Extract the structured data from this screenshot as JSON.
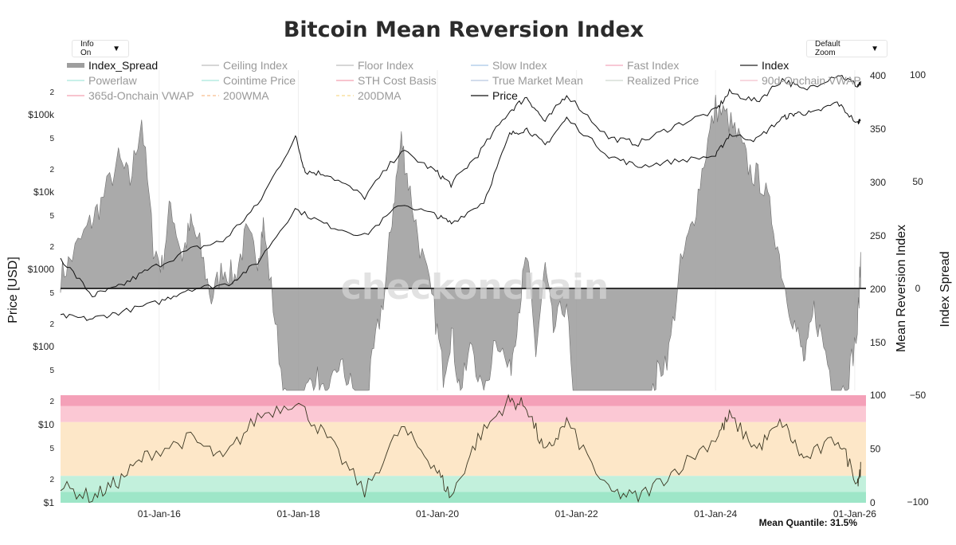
{
  "title": "Bitcoin Mean Reversion Index",
  "controls": {
    "info_label": "Info On",
    "zoom_label": "Default Zoom"
  },
  "watermark": "checkonchain",
  "footer": "Mean Quantile: 31.5%",
  "axes": {
    "left_title": "Price [USD]",
    "right_title": "Mean Reversion Index",
    "far_right_title": "Index Spread",
    "price_ticks": [
      "2",
      "$100k",
      "5",
      "2",
      "$10k",
      "5",
      "2",
      "$1000",
      "5",
      "2",
      "$100",
      "5"
    ],
    "quantile_price_ticks": [
      "2",
      "$10",
      "5",
      "2",
      "$1"
    ],
    "index_ticks": [
      "400",
      "350",
      "300",
      "250",
      "200",
      "150"
    ],
    "quantile_ticks": [
      "100",
      "50",
      "0"
    ],
    "spread_ticks": [
      "100",
      "50",
      "0",
      "−50",
      "−100"
    ],
    "x_ticks": [
      "01-Jan-16",
      "01-Jan-18",
      "01-Jan-20",
      "01-Jan-22",
      "01-Jan-24",
      "01-Jan-26"
    ]
  },
  "legend": [
    {
      "label": "Index_Spread",
      "color": "#9e9e9e",
      "style": "thick",
      "active": true
    },
    {
      "label": "Ceiling Index",
      "color": "#bdbdbd",
      "style": "line",
      "active": false
    },
    {
      "label": "Floor Index",
      "color": "#bdbdbd",
      "style": "line",
      "active": false
    },
    {
      "label": "Slow Index",
      "color": "#a8c8e8",
      "style": "line",
      "active": false
    },
    {
      "label": "Fast Index",
      "color": "#f4a8bc",
      "style": "line",
      "active": false
    },
    {
      "label": "Index",
      "color": "#222222",
      "style": "line",
      "active": true
    },
    {
      "label": "Powerlaw",
      "color": "#a8e8dc",
      "style": "line",
      "active": false
    },
    {
      "label": "Cointime Price",
      "color": "#a8e8dc",
      "style": "line",
      "active": false
    },
    {
      "label": "STH Cost Basis",
      "color": "#f4a0b0",
      "style": "line",
      "active": false
    },
    {
      "label": "True Market Mean",
      "color": "#b8c8e0",
      "style": "line",
      "active": false
    },
    {
      "label": "Realized Price",
      "color": "#cfd8cf",
      "style": "line",
      "active": false
    },
    {
      "label": "90d-Onchain VWAP",
      "color": "#f4c0cc",
      "style": "line",
      "active": false
    },
    {
      "label": "365d-Onchain VWAP",
      "color": "#f4a0b0",
      "style": "line",
      "active": false
    },
    {
      "label": "200WMA",
      "color": "#f8c8a0",
      "style": "dash",
      "active": false
    },
    {
      "label": "200DMA",
      "color": "#f8e0a0",
      "style": "dash",
      "active": false
    },
    {
      "label": "Price",
      "color": "#111111",
      "style": "line",
      "active": true
    }
  ],
  "colors": {
    "spread_fill": "#9b9b9b",
    "spread_line": "#6e6e6e",
    "index_line": "#111111",
    "price_line": "#111111",
    "zone_extreme": "#f4a0b8",
    "zone_high": "#fbc8d4",
    "zone_mid": "#fde7c8",
    "zone_low": "#c2f0dc",
    "zone_bottom": "#9ee6c8",
    "grid": "#eeeeee"
  },
  "chart_data": [
    {
      "type": "area",
      "name": "Index_Spread",
      "yaxis": "Index Spread",
      "ylim": [
        -100,
        100
      ],
      "x": [
        "2014-08-01",
        "2014-10-01",
        "2015-01-01",
        "2015-03-01",
        "2015-06-01",
        "2015-08-01",
        "2015-10-01",
        "2015-12-01",
        "2016-01-15",
        "2016-03-01",
        "2016-05-01",
        "2016-06-15",
        "2016-08-01",
        "2016-10-01",
        "2016-12-01",
        "2017-02-01",
        "2017-04-01",
        "2017-06-01",
        "2017-07-01",
        "2017-09-01",
        "2017-11-01",
        "2017-12-15",
        "2018-02-01",
        "2018-04-01",
        "2018-06-01",
        "2018-08-01",
        "2018-10-01",
        "2018-12-15",
        "2019-02-01",
        "2019-04-01",
        "2019-05-15",
        "2019-06-26",
        "2019-08-01",
        "2019-10-01",
        "2019-12-15",
        "2020-02-01",
        "2020-03-15",
        "2020-05-01",
        "2020-07-01",
        "2020-09-01",
        "2020-11-01",
        "2021-01-15",
        "2021-03-01",
        "2021-04-15",
        "2021-06-01",
        "2021-07-20",
        "2021-09-01",
        "2021-11-10",
        "2022-01-15",
        "2022-04-01",
        "2022-06-20",
        "2022-09-01",
        "2022-11-20",
        "2023-01-15",
        "2023-03-01",
        "2023-05-01",
        "2023-07-01",
        "2023-09-01",
        "2023-11-01",
        "2024-01-01",
        "2024-03-01",
        "2024-05-01",
        "2024-07-01",
        "2024-09-01",
        "2024-11-01",
        "2025-01-01",
        "2025-03-01",
        "2025-04-15",
        "2025-06-01",
        "2025-08-01",
        "2025-10-01",
        "2025-12-01",
        "2026-01-15",
        "2026-02-01"
      ],
      "values": [
        5,
        15,
        30,
        40,
        60,
        50,
        80,
        20,
        10,
        40,
        15,
        30,
        20,
        -5,
        10,
        5,
        25,
        15,
        30,
        -15,
        -60,
        -75,
        -50,
        -40,
        -55,
        -35,
        -45,
        -60,
        -30,
        0,
        40,
        70,
        50,
        20,
        -10,
        -40,
        -20,
        -50,
        -25,
        -55,
        -20,
        -40,
        -10,
        15,
        -30,
        10,
        -20,
        -5,
        -100,
        -85,
        -70,
        -100,
        -95,
        -60,
        -40,
        -30,
        10,
        30,
        60,
        85,
        80,
        70,
        55,
        50,
        30,
        0,
        -20,
        -35,
        -10,
        -30,
        -55,
        -40,
        -20,
        15
      ],
      "series_color": "#9b9b9b"
    },
    {
      "type": "line",
      "name": "Index",
      "yaxis": "Mean Reversion Index",
      "ylim": [
        150,
        400
      ],
      "x": [
        "2014-08-01",
        "2015-01-01",
        "2015-06-01",
        "2016-01-01",
        "2016-06-01",
        "2017-01-01",
        "2017-06-01",
        "2017-12-15",
        "2018-06-01",
        "2018-12-15",
        "2019-06-26",
        "2019-12-15",
        "2020-03-15",
        "2020-09-01",
        "2021-01-15",
        "2021-04-15",
        "2021-07-20",
        "2021-11-10",
        "2022-06-20",
        "2022-11-20",
        "2023-06-01",
        "2024-01-01",
        "2024-03-15",
        "2024-08-01",
        "2024-12-15",
        "2025-03-01",
        "2025-06-01",
        "2025-10-01",
        "2026-01-15",
        "2026-02-01"
      ],
      "values": [
        175,
        172,
        178,
        188,
        200,
        205,
        225,
        275,
        260,
        250,
        280,
        270,
        262,
        282,
        345,
        350,
        335,
        360,
        325,
        315,
        320,
        325,
        345,
        340,
        360,
        365,
        365,
        375,
        355,
        360
      ]
    },
    {
      "type": "line",
      "name": "Price",
      "yaxis": "Price [USD]",
      "scale": "log",
      "ylim": [
        50,
        200000
      ],
      "x": [
        "2014-08-01",
        "2015-01-15",
        "2015-06-01",
        "2015-11-01",
        "2016-06-15",
        "2016-12-01",
        "2017-06-01",
        "2017-12-17",
        "2018-02-06",
        "2018-06-01",
        "2018-12-15",
        "2019-06-26",
        "2019-12-15",
        "2020-03-13",
        "2020-08-01",
        "2021-01-08",
        "2021-04-14",
        "2021-07-20",
        "2021-11-10",
        "2022-06-18",
        "2022-11-21",
        "2023-06-01",
        "2024-01-01",
        "2024-03-14",
        "2024-08-05",
        "2024-12-17",
        "2025-04-07",
        "2025-10-06",
        "2026-01-15",
        "2026-02-01"
      ],
      "values": [
        550,
        180,
        230,
        380,
        700,
        900,
        2600,
        19500,
        7000,
        6500,
        3300,
        13000,
        7200,
        4800,
        11500,
        40000,
        63000,
        30000,
        68000,
        19000,
        16000,
        27000,
        42000,
        72000,
        55000,
        106000,
        77000,
        124000,
        88000,
        92000
      ]
    },
    {
      "type": "line",
      "name": "Mean Quantile",
      "yaxis": "Quantile",
      "ylim": [
        0,
        100
      ],
      "x": [
        "2014-08-01",
        "2015-01-15",
        "2015-06-01",
        "2015-11-01",
        "2016-06-15",
        "2016-12-01",
        "2017-06-01",
        "2017-12-17",
        "2018-06-01",
        "2018-12-15",
        "2019-06-26",
        "2019-12-15",
        "2020-03-13",
        "2020-08-01",
        "2021-01-08",
        "2021-04-14",
        "2021-07-20",
        "2021-11-10",
        "2022-06-18",
        "2022-11-21",
        "2023-06-01",
        "2024-01-01",
        "2024-03-14",
        "2024-08-05",
        "2024-12-17",
        "2025-04-07",
        "2025-10-06",
        "2026-01-15",
        "2026-02-01"
      ],
      "values": [
        15,
        5,
        20,
        45,
        60,
        40,
        80,
        95,
        60,
        10,
        70,
        35,
        5,
        60,
        95,
        90,
        45,
        75,
        10,
        5,
        30,
        60,
        80,
        50,
        75,
        40,
        60,
        20,
        31.5
      ],
      "zones": [
        {
          "label": "extreme",
          "from": 90,
          "to": 100,
          "color": "#f4a0b8"
        },
        {
          "label": "high",
          "from": 75,
          "to": 90,
          "color": "#fbc8d4"
        },
        {
          "label": "mid",
          "from": 25,
          "to": 75,
          "color": "#fde7c8"
        },
        {
          "label": "low",
          "from": 10,
          "to": 25,
          "color": "#c2f0dc"
        },
        {
          "label": "bottom",
          "from": 0,
          "to": 10,
          "color": "#9ee6c8"
        }
      ]
    }
  ]
}
